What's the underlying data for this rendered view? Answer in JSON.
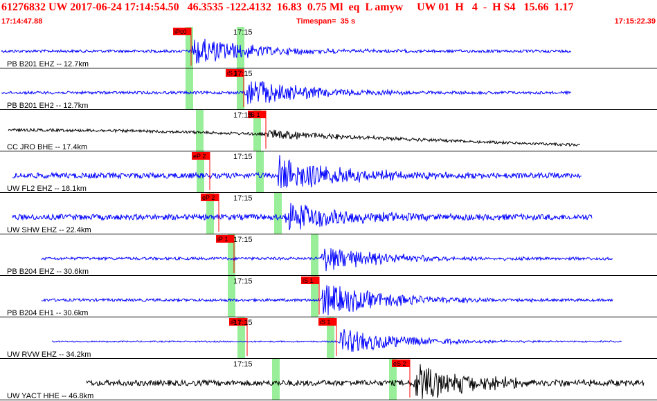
{
  "header": {
    "event_line": "61276832 UW 2017-06-24 17:14:54.50   46.3535 -122.4132  16.83  0.75 Ml  eq  L amyw     UW 01  H   4  -  H S4   15.66  1.17",
    "start_time": "17:14:47.88",
    "timespan": "Timespan=  35 s",
    "end_time": "17:15:22.39"
  },
  "colors": {
    "header_text": "#ff0000",
    "trace_blue": "#0000ff",
    "trace_black": "#000000",
    "pick_box": "#ff0000",
    "window_highlight": "#99ee99",
    "separator": "#000000"
  },
  "minute_marker": "17:15",
  "traces": [
    {
      "label": "PB B201 EHZ -- 12.7km",
      "color": "blue",
      "picks": [
        {
          "label": "iPc0",
          "kind": "P"
        }
      ]
    },
    {
      "label": "PB B201 EH2 -- 12.7km",
      "color": "blue",
      "picks": [
        {
          "label": "iS 1",
          "kind": "S"
        }
      ]
    },
    {
      "label": "CC JRO BHE -- 17.4km",
      "color": "black",
      "picks": [
        {
          "label": "iS 1",
          "kind": "S"
        }
      ]
    },
    {
      "label": "UW FL2 EHZ -- 18.1km",
      "color": "blue",
      "picks": [
        {
          "label": "eP 2",
          "kind": "P"
        }
      ]
    },
    {
      "label": "UW SHW EHZ -- 22.4km",
      "color": "blue",
      "picks": [
        {
          "label": "eP 2",
          "kind": "P"
        }
      ]
    },
    {
      "label": "PB B204 EHZ -- 30.6km",
      "color": "blue",
      "picks": [
        {
          "label": "iP 1",
          "kind": "P"
        }
      ]
    },
    {
      "label": "PB B204 EH1 -- 30.6km",
      "color": "blue",
      "picks": [
        {
          "label": "iS 1",
          "kind": "S"
        }
      ]
    },
    {
      "label": "UW RVW EHZ -- 34.2km",
      "color": "blue",
      "picks": [
        {
          "label": "iP 1",
          "kind": "P"
        },
        {
          "label": "iS 1",
          "kind": "S"
        }
      ]
    },
    {
      "label": "UW YACT HHE -- 46.8km",
      "color": "black",
      "picks": [
        {
          "label": "eS 2",
          "kind": "S"
        }
      ]
    }
  ]
}
